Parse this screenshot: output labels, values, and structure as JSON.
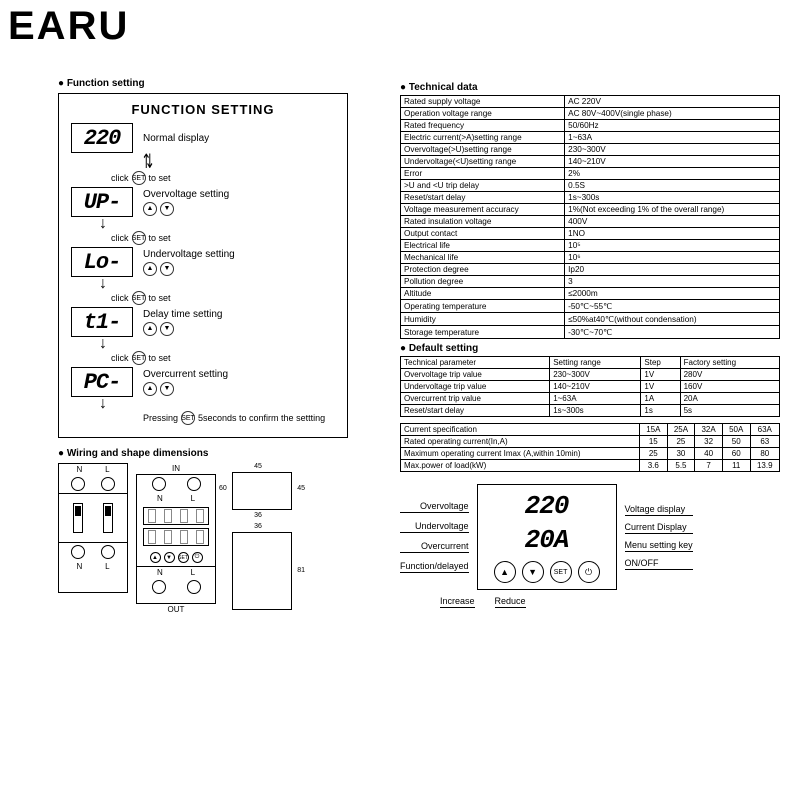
{
  "brand": "EARU",
  "function_setting": {
    "section": "Function setting",
    "title": "FUNCTION SETTING",
    "steps": [
      {
        "lcd": "220",
        "label": "Normal display"
      },
      {
        "lcd": "UP-",
        "label": "Overvoltage setting"
      },
      {
        "lcd": "Lo-",
        "label": "Undervoltage setting"
      },
      {
        "lcd": "t1-",
        "label": "Delay time setting"
      },
      {
        "lcd": "PC-",
        "label": "Overcurrent setting"
      }
    ],
    "click_set": "click",
    "to_set": "to set",
    "set_btn": "SET",
    "updown": "▲ ▼",
    "confirm": "Pressing",
    "confirm2": "5seconds to confirm the settting"
  },
  "wiring_title": "Wiring and shape dimensions",
  "wiring": {
    "in": "IN",
    "out": "OUT",
    "n": "N",
    "l": "L",
    "dims": {
      "w1": "45",
      "h1": "45",
      "h2": "60",
      "w2": "36",
      "h3": "81"
    }
  },
  "technical": {
    "title": "Technical data",
    "rows": [
      [
        "Rated supply voltage",
        "AC 220V"
      ],
      [
        "Operation voltage range",
        "AC 80V~400V(single phase)"
      ],
      [
        "Rated frequency",
        "50/60Hz"
      ],
      [
        "Electric current(>A)setting range",
        "1~63A"
      ],
      [
        "Overvoltage(>U)setting range",
        "230~300V"
      ],
      [
        "Undervoltage(<U)setting range",
        "140~210V"
      ],
      [
        "Error",
        "2%"
      ],
      [
        ">U and <U trip delay",
        "0.5S"
      ],
      [
        "Reset/start delay",
        "1s~300s"
      ],
      [
        "Voltage measurement accuracy",
        "1%(Not exceeding 1% of the overall range)"
      ],
      [
        "Rated insulation voltage",
        "400V"
      ],
      [
        "Output contact",
        "1NO"
      ],
      [
        "Electrical life",
        "10⁵"
      ],
      [
        "Mechanical life",
        "10⁶"
      ],
      [
        "Protection degree",
        "Ip20"
      ],
      [
        "Pollution degree",
        "3"
      ],
      [
        "Altitude",
        "≤2000m"
      ],
      [
        "Operating temperature",
        "-50℃~55℃"
      ],
      [
        "Humidity",
        "≤50%at40℃(without condensation)"
      ],
      [
        "Storage temperature",
        "-30℃~70℃"
      ]
    ]
  },
  "default_setting": {
    "title": "Default setting",
    "header": [
      "Technical parameter",
      "Setting range",
      "Step",
      "Factory setting"
    ],
    "rows": [
      [
        "Overvoltage trip value",
        "230~300V",
        "1V",
        "280V"
      ],
      [
        "Undervoltage trip value",
        "140~210V",
        "1V",
        "160V"
      ],
      [
        "Overcurrent trip value",
        "1~63A",
        "1A",
        "20A"
      ],
      [
        "Reset/start delay",
        "1s~300s",
        "1s",
        "5s"
      ]
    ]
  },
  "current_spec": {
    "header": [
      "Current specification",
      "15A",
      "25A",
      "32A",
      "50A",
      "63A"
    ],
    "rows": [
      [
        "Rated operating current(In,A)",
        "15",
        "25",
        "32",
        "50",
        "63"
      ],
      [
        "Maximum operating current Imax (A,within 10min)",
        "25",
        "30",
        "40",
        "60",
        "80"
      ],
      [
        "Max.power of load(kW)",
        "3.6",
        "5.5",
        "7",
        "11",
        "13.9"
      ]
    ]
  },
  "display_panel": {
    "left_labels": [
      "Overvoltage",
      "Undervoltage",
      "Overcurrent",
      "Function/delayed"
    ],
    "voltage": "220",
    "current": "20A",
    "right_labels": [
      "Voltage display",
      "Current Display",
      "Menu setting key",
      "ON/OFF"
    ],
    "bottom": [
      "Increase",
      "Reduce"
    ],
    "btns": [
      "▲",
      "▼",
      "SET",
      "⏻"
    ]
  }
}
